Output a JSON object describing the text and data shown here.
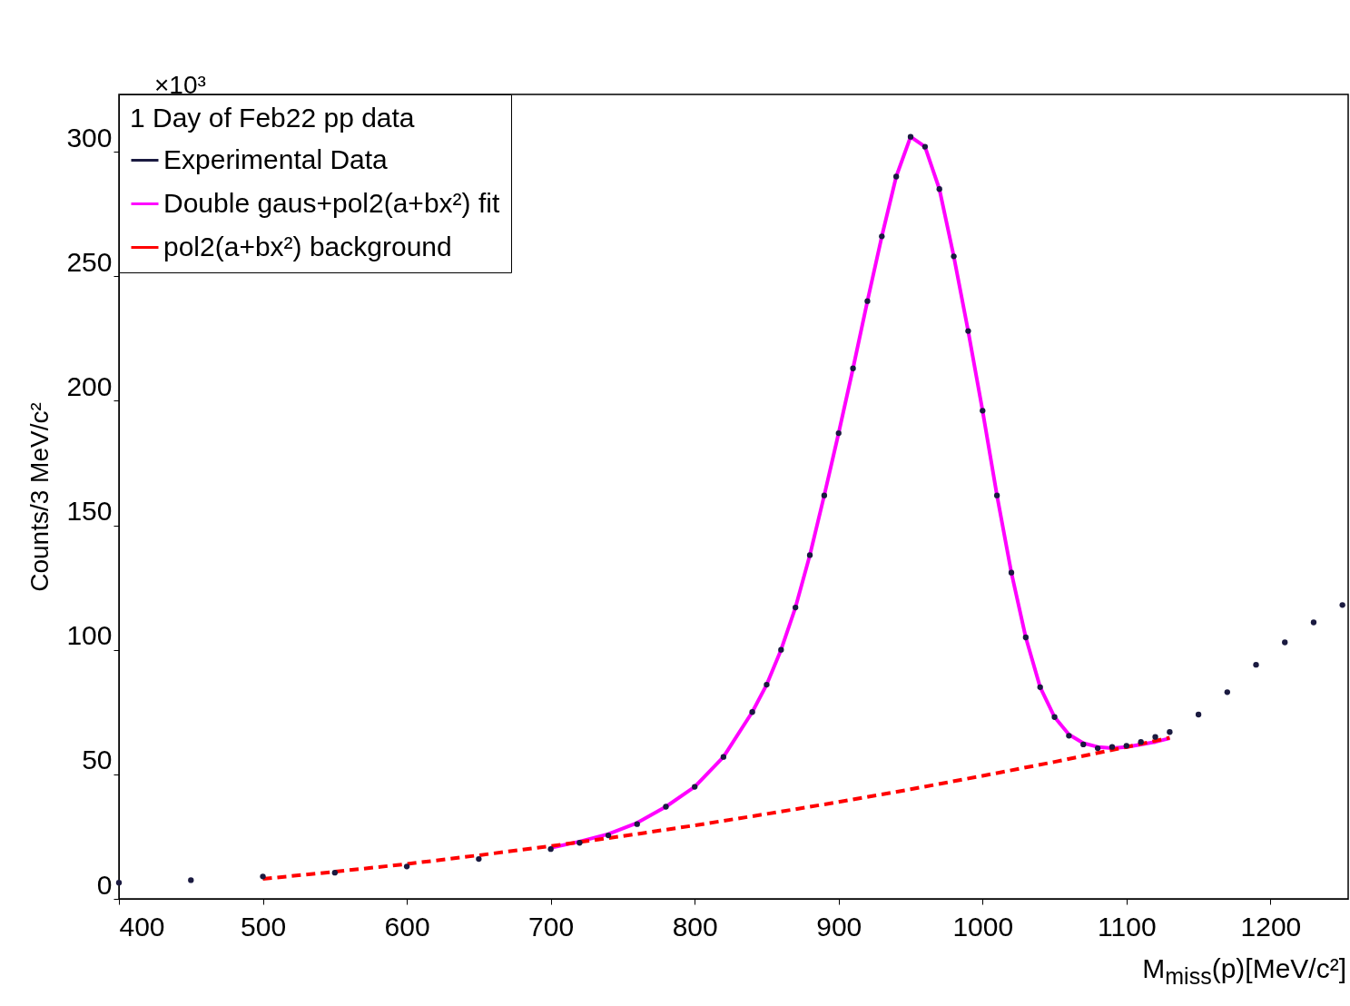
{
  "chart_data": {
    "type": "scatter",
    "legend_title": "1 Day of Feb22 pp data",
    "xlabel": "M$_{miss}$(p)[MeV/c²]",
    "ylabel": "Counts/3 MeV/c²",
    "annotations": [
      "×10³"
    ],
    "xlim": [
      400,
      1254
    ],
    "ylim": [
      0,
      323
    ],
    "xticks": [
      400,
      500,
      600,
      700,
      800,
      900,
      1000,
      1100,
      1200
    ],
    "yticks": [
      0,
      50,
      100,
      150,
      200,
      250,
      300
    ],
    "grid": false,
    "legend": "top left",
    "series": [
      {
        "name": "Experimental Data",
        "marker": "circle",
        "color": "#1a1a40",
        "x": [
          400,
          450,
          500,
          550,
          600,
          650,
          700,
          720,
          740,
          760,
          780,
          800,
          820,
          840,
          850,
          860,
          870,
          880,
          890,
          900,
          910,
          920,
          930,
          940,
          950,
          960,
          970,
          980,
          990,
          1000,
          1010,
          1020,
          1030,
          1040,
          1050,
          1060,
          1070,
          1080,
          1090,
          1100,
          1110,
          1120,
          1130,
          1150,
          1170,
          1190,
          1210,
          1230,
          1250
        ],
        "values": [
          6.5,
          7.5,
          9,
          10.5,
          13,
          16,
          20,
          22.5,
          25.5,
          30,
          37,
          45,
          57,
          75,
          86,
          100,
          117,
          138,
          162,
          187,
          213,
          240,
          266,
          290,
          306,
          302,
          285,
          258,
          228,
          196,
          162,
          131,
          105,
          85,
          73,
          65.5,
          62,
          60.5,
          61,
          61.5,
          63,
          65,
          67,
          74,
          83,
          94,
          103,
          111,
          118
        ]
      },
      {
        "name": "Double gaus+pol2(a+bx²) fit",
        "type": "line",
        "line_style": "solid",
        "color": "#ff00ff",
        "x": [
          700,
          720,
          740,
          760,
          780,
          800,
          820,
          840,
          850,
          860,
          870,
          880,
          890,
          900,
          910,
          920,
          930,
          940,
          950,
          960,
          970,
          980,
          990,
          1000,
          1010,
          1020,
          1030,
          1040,
          1050,
          1060,
          1070,
          1080,
          1090,
          1100,
          1110,
          1120,
          1130
        ],
        "values": [
          20.5,
          23,
          26,
          30.5,
          37,
          45,
          57,
          75,
          86,
          100,
          117,
          138,
          162,
          187,
          213,
          240,
          266,
          290,
          306,
          302,
          285,
          258,
          228,
          196,
          162,
          131,
          105,
          85,
          73,
          66,
          62.5,
          61,
          60.5,
          61,
          62,
          63,
          64.5
        ]
      },
      {
        "name": "pol2(a+bx²) background",
        "type": "line",
        "line_style": "dashed",
        "color": "#ff0000",
        "x": [
          500,
          550,
          600,
          650,
          700,
          750,
          800,
          850,
          900,
          950,
          1000,
          1050,
          1100,
          1130
        ],
        "values": [
          8,
          10.9,
          14,
          17.5,
          21.2,
          25.2,
          29.5,
          34.1,
          38.9,
          44,
          49.4,
          55,
          61,
          64.7
        ]
      }
    ]
  }
}
